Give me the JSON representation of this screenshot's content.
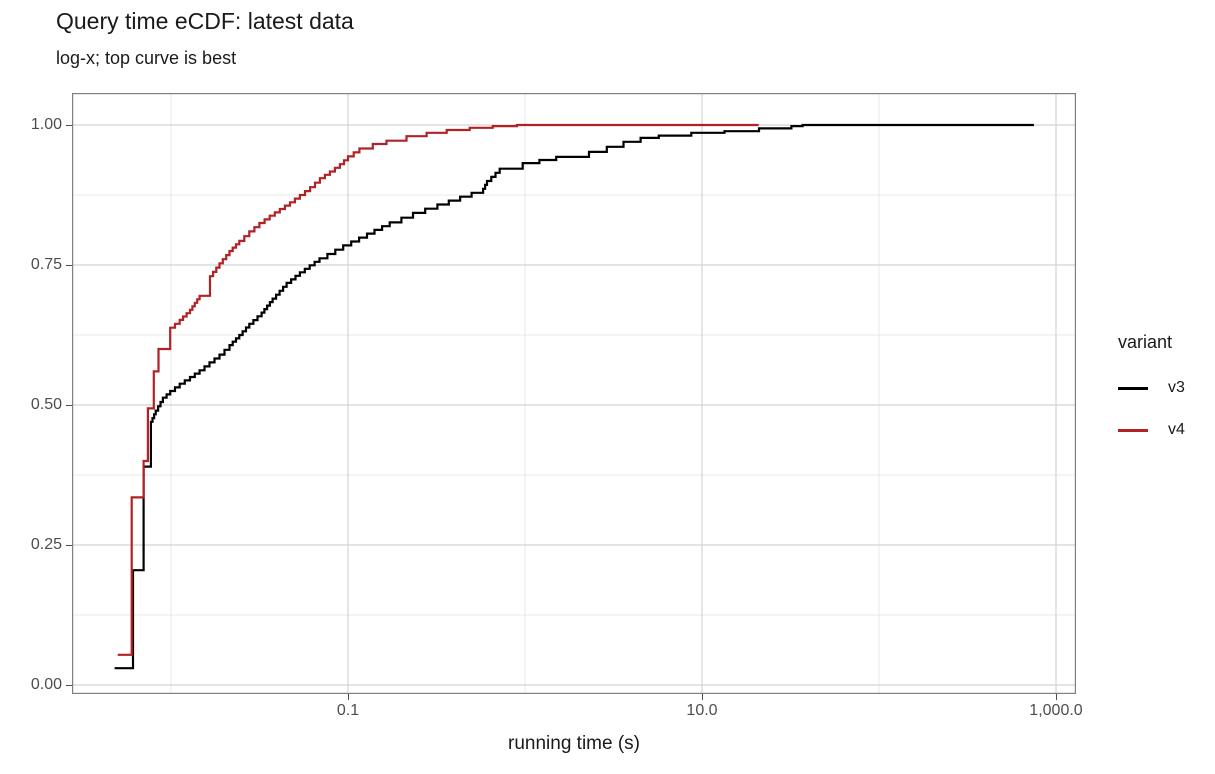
{
  "chart": {
    "title": "Query time eCDF: latest data",
    "subtitle": "log-x; top curve is best",
    "xlabel": "running time (s)"
  },
  "chart_data": {
    "type": "line",
    "subtype": "ecdf-step",
    "title": "Query time eCDF: latest data",
    "subtitle": "log-x; top curve is best",
    "xlabel": "running time (s)",
    "ylabel": "",
    "x_scale": "log10",
    "xlim": [
      0.00276,
      1297
    ],
    "ylim": [
      -0.016,
      1.057
    ],
    "grid": "on",
    "legend_title": "variant",
    "legend_position": "right",
    "colors": {
      "v3": "#000000",
      "v4": "#b22126",
      "grid_major": "#d4d4d4",
      "grid_minor": "#e9e9e9",
      "panel_border": "#7f7f7f",
      "tick_text": "#4d4d4d"
    },
    "x_ticks": [
      {
        "label": "0.1",
        "value": 0.1
      },
      {
        "label": "10.0",
        "value": 10
      },
      {
        "label": "1,000.0",
        "value": 1000
      }
    ],
    "x_minor_ticks": [
      0.01,
      1,
      100
    ],
    "y_ticks": [
      {
        "label": "0.00",
        "value": 0
      },
      {
        "label": "0.25",
        "value": 0.25
      },
      {
        "label": "0.50",
        "value": 0.5
      },
      {
        "label": "0.75",
        "value": 0.75
      },
      {
        "label": "1.00",
        "value": 1
      }
    ],
    "y_minor_ticks": [
      0.125,
      0.375,
      0.625,
      0.875
    ],
    "series": [
      {
        "name": "v3",
        "color": "#000000",
        "points": [
          [
            0.0048,
            0.03
          ],
          [
            0.0061,
            0.205
          ],
          [
            0.007,
            0.39
          ],
          [
            0.0077,
            0.47
          ],
          [
            0.0082,
            0.49
          ],
          [
            0.009,
            0.513
          ],
          [
            0.0099,
            0.525
          ],
          [
            0.0112,
            0.538
          ],
          [
            0.0128,
            0.55
          ],
          [
            0.0145,
            0.562
          ],
          [
            0.0165,
            0.576
          ],
          [
            0.0188,
            0.59
          ],
          [
            0.0214,
            0.607
          ],
          [
            0.0243,
            0.625
          ],
          [
            0.0277,
            0.645
          ],
          [
            0.0325,
            0.665
          ],
          [
            0.0375,
            0.69
          ],
          [
            0.045,
            0.718
          ],
          [
            0.0535,
            0.737
          ],
          [
            0.069,
            0.762
          ],
          [
            0.094,
            0.785
          ],
          [
            0.128,
            0.806
          ],
          [
            0.172,
            0.826
          ],
          [
            0.233,
            0.843
          ],
          [
            0.32,
            0.858
          ],
          [
            0.43,
            0.872
          ],
          [
            0.58,
            0.886
          ],
          [
            0.61,
            0.9
          ],
          [
            0.72,
            0.922
          ],
          [
            0.97,
            0.932
          ],
          [
            1.5,
            0.943
          ],
          [
            2.3,
            0.952
          ],
          [
            2.9,
            0.961
          ],
          [
            3.6,
            0.97
          ],
          [
            4.5,
            0.977
          ],
          [
            5.7,
            0.981
          ],
          [
            8.7,
            0.986
          ],
          [
            13.4,
            0.989
          ],
          [
            21.0,
            0.994
          ],
          [
            32.0,
            0.998
          ],
          [
            37.0,
            1.0
          ],
          [
            750.0,
            1.0
          ]
        ]
      },
      {
        "name": "v4",
        "color": "#b22126",
        "points": [
          [
            0.005,
            0.054
          ],
          [
            0.006,
            0.335
          ],
          [
            0.007,
            0.4
          ],
          [
            0.0074,
            0.494
          ],
          [
            0.008,
            0.56
          ],
          [
            0.0085,
            0.6
          ],
          [
            0.0099,
            0.638
          ],
          [
            0.0112,
            0.652
          ],
          [
            0.0128,
            0.67
          ],
          [
            0.0145,
            0.695
          ],
          [
            0.0166,
            0.73
          ],
          [
            0.0188,
            0.753
          ],
          [
            0.0214,
            0.775
          ],
          [
            0.0243,
            0.793
          ],
          [
            0.0277,
            0.81
          ],
          [
            0.0316,
            0.825
          ],
          [
            0.0361,
            0.838
          ],
          [
            0.0412,
            0.85
          ],
          [
            0.047,
            0.862
          ],
          [
            0.0535,
            0.875
          ],
          [
            0.0611,
            0.889
          ],
          [
            0.0694,
            0.905
          ],
          [
            0.079,
            0.917
          ],
          [
            0.09,
            0.93
          ],
          [
            0.1,
            0.944
          ],
          [
            0.116,
            0.958
          ],
          [
            0.138,
            0.966
          ],
          [
            0.165,
            0.972
          ],
          [
            0.214,
            0.98
          ],
          [
            0.278,
            0.986
          ],
          [
            0.361,
            0.991
          ],
          [
            0.487,
            0.995
          ],
          [
            0.657,
            0.998
          ],
          [
            0.9,
            1.0
          ],
          [
            20.9,
            1.0
          ]
        ]
      }
    ]
  }
}
